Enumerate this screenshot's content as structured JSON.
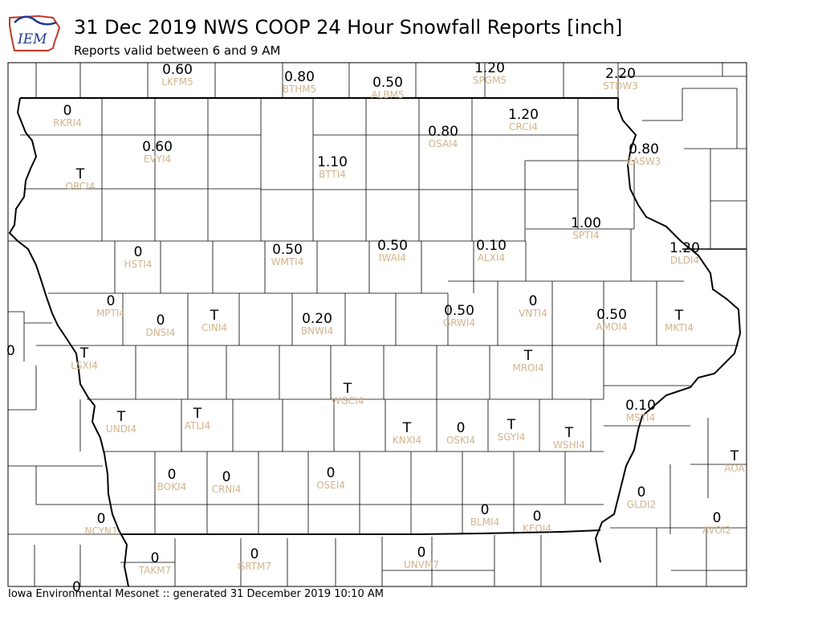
{
  "header": {
    "logo_text": "IEM",
    "title": "31 Dec 2019 NWS COOP 24 Hour Snowfall Reports [inch]",
    "subtitle": "Reports valid between 6 and 9 AM"
  },
  "footer": {
    "text": "Iowa Environmental Mesonet :: generated 31 December 2019 10:10 AM"
  },
  "colors": {
    "value_text": "#000000",
    "station_text": "#d2b48c",
    "county_lines": "#000000",
    "logo_red": "#c0392b",
    "logo_blue": "#1f3a93"
  },
  "stations": [
    {
      "id": "LKFM5",
      "value": "0.60"
    },
    {
      "id": "BTHM5",
      "value": "0.80"
    },
    {
      "id": "ALBM5",
      "value": "0.50"
    },
    {
      "id": "SPGM5",
      "value": "1.20"
    },
    {
      "id": "STDW3",
      "value": "2.20"
    },
    {
      "id": "RKRI4",
      "value": "0"
    },
    {
      "id": "CRCI4",
      "value": "1.20"
    },
    {
      "id": "OSAI4",
      "value": "0.80"
    },
    {
      "id": "EVYI4",
      "value": "0.60"
    },
    {
      "id": "EASW3",
      "value": "0.80"
    },
    {
      "id": "BTTI4",
      "value": "1.10"
    },
    {
      "id": "ORCI4",
      "value": "T"
    },
    {
      "id": "SPTI4",
      "value": "1.00"
    },
    {
      "id": "HSTI4",
      "value": "0"
    },
    {
      "id": "WMTI4",
      "value": "0.50"
    },
    {
      "id": "IWAI4",
      "value": "0.50"
    },
    {
      "id": "ALXI4",
      "value": "0.10"
    },
    {
      "id": "DLDI4",
      "value": "1.20"
    },
    {
      "id": "MPTI4",
      "value": "0"
    },
    {
      "id": "VNTI4",
      "value": "0"
    },
    {
      "id": "DNSI4",
      "value": "0"
    },
    {
      "id": "CINI4",
      "value": "T"
    },
    {
      "id": "BNWI4",
      "value": "0.20"
    },
    {
      "id": "GRWI4",
      "value": "0.50"
    },
    {
      "id": "AMOI4",
      "value": "0.50"
    },
    {
      "id": "MKTI4",
      "value": "T"
    },
    {
      "id": "LSXI4",
      "value": "T"
    },
    {
      "id": "MROI4",
      "value": "T"
    },
    {
      "id": "WGCI4",
      "value": "T"
    },
    {
      "id": "MSTI4",
      "value": "0.10"
    },
    {
      "id": "UNDI4",
      "value": "T"
    },
    {
      "id": "ATLI4",
      "value": "T"
    },
    {
      "id": "KNXI4",
      "value": "T"
    },
    {
      "id": "OSKI4",
      "value": "0"
    },
    {
      "id": "SGYI4",
      "value": "T"
    },
    {
      "id": "WSHI4",
      "value": "T"
    },
    {
      "id": "AOA",
      "value": "T"
    },
    {
      "id": "BOKI4",
      "value": "0"
    },
    {
      "id": "CRNI4",
      "value": "0"
    },
    {
      "id": "OSEI4",
      "value": "0"
    },
    {
      "id": "GLDI2",
      "value": "0"
    },
    {
      "id": "BLMI4",
      "value": "0"
    },
    {
      "id": "KEOI4",
      "value": "0"
    },
    {
      "id": "NCYN1",
      "value": "0"
    },
    {
      "id": "AVOI2",
      "value": "0"
    },
    {
      "id": "TAKM7",
      "value": "0"
    },
    {
      "id": "GRTM7",
      "value": "0"
    },
    {
      "id": "UNVM7",
      "value": "0"
    }
  ],
  "partial_values": [
    "0",
    "0"
  ]
}
